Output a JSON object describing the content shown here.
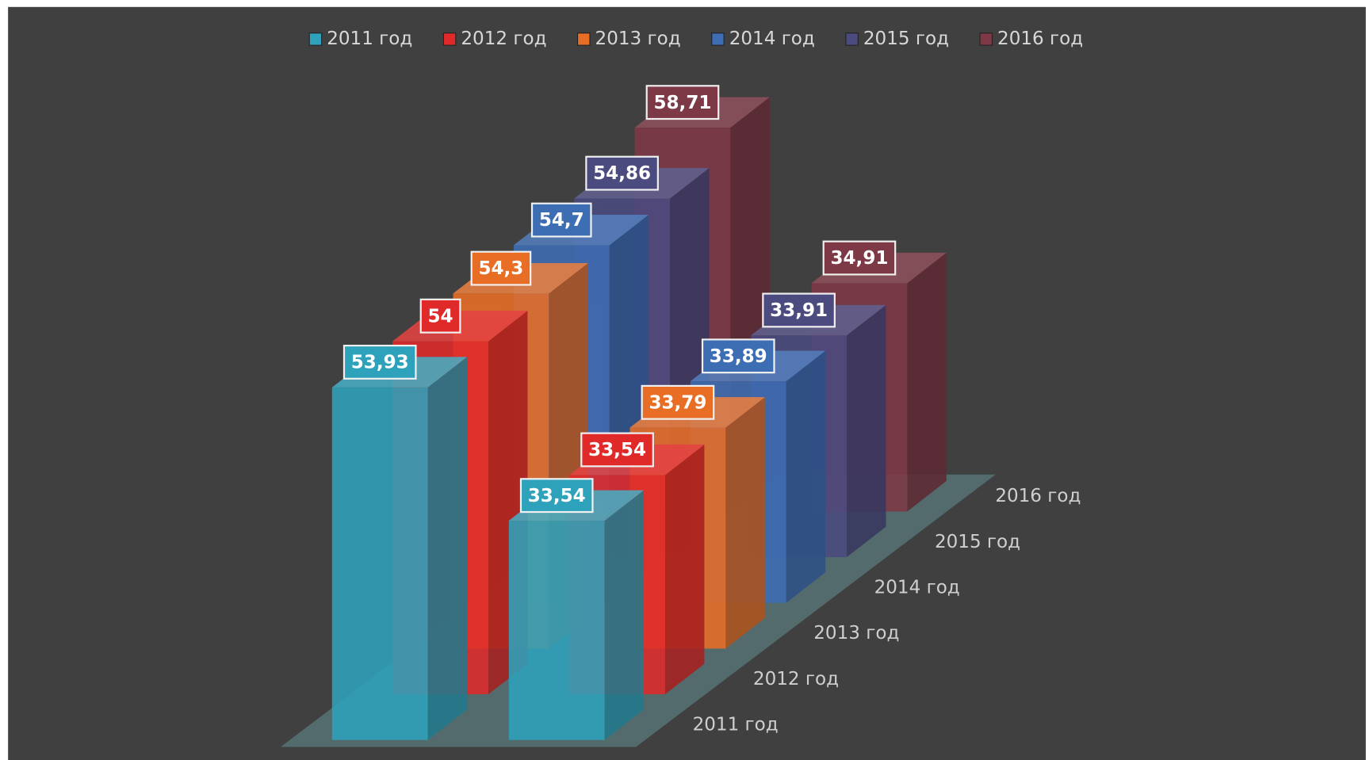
{
  "chart_data": {
    "type": "bar3d",
    "categories": [
      null,
      null
    ],
    "series": [
      {
        "name": "2011 год",
        "color": "#2fa2bb",
        "values": [
          53.93,
          33.54
        ],
        "value_labels": [
          "53,93",
          "33,54"
        ]
      },
      {
        "name": "2012 год",
        "color": "#e02a2a",
        "values": [
          54,
          33.54
        ],
        "value_labels": [
          "54",
          "33,54"
        ]
      },
      {
        "name": "2013 год",
        "color": "#e86e26",
        "values": [
          54.3,
          33.79
        ],
        "value_labels": [
          "54,3",
          "33,79"
        ]
      },
      {
        "name": "2014 год",
        "color": "#3d6db3",
        "values": [
          54.7,
          33.89
        ],
        "value_labels": [
          "54,7",
          "33,89"
        ]
      },
      {
        "name": "2015 год",
        "color": "#4b4b80",
        "values": [
          54.86,
          33.91
        ],
        "value_labels": [
          "54,86",
          "33,91"
        ]
      },
      {
        "name": "2016 год",
        "color": "#7e3946",
        "values": [
          58.71,
          34.91
        ],
        "value_labels": [
          "58,71",
          "34,91"
        ]
      }
    ],
    "legend": "top"
  }
}
